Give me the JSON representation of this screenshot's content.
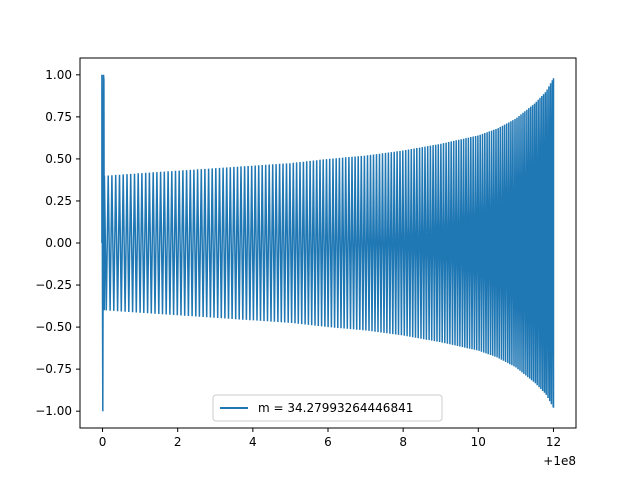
{
  "chart_data": {
    "type": "line",
    "title": "",
    "xlabel": "",
    "ylabel": "",
    "x_offset_label": "+1e8",
    "xlim": [
      -0.6,
      12.6
    ],
    "ylim": [
      -1.1,
      1.1
    ],
    "x_ticks": [
      0,
      2,
      4,
      6,
      8,
      10,
      12
    ],
    "x_tick_labels": [
      "0",
      "2",
      "4",
      "6",
      "8",
      "10",
      "12"
    ],
    "y_ticks": [
      1.0,
      0.75,
      0.5,
      0.25,
      0.0,
      -0.25,
      -0.5,
      -0.75,
      -1.0
    ],
    "y_tick_labels": [
      "1.00",
      "0.75",
      "0.50",
      "0.25",
      "0.00",
      "−0.25",
      "−0.50",
      "−0.75",
      "−1.00"
    ],
    "grid": false,
    "legend_position": "lower center",
    "series": [
      {
        "name": "m = 34.27993264446841",
        "color": "#1f77b4",
        "description": "oscillation with envelope rising from about 0.40 near x=0 to about 1.00 at x=12; initial spike to ±1.00 at x≈0",
        "envelope_x": [
          0.05,
          1,
          2,
          3,
          4,
          5,
          6,
          7,
          8,
          9,
          10,
          10.5,
          11,
          11.5,
          11.8,
          12.0
        ],
        "envelope_y": [
          0.4,
          0.415,
          0.43,
          0.445,
          0.46,
          0.475,
          0.5,
          0.52,
          0.55,
          0.59,
          0.64,
          0.68,
          0.74,
          0.83,
          0.9,
          0.98
        ],
        "spike_x": 0,
        "spike_amplitude": 1.0
      }
    ]
  }
}
